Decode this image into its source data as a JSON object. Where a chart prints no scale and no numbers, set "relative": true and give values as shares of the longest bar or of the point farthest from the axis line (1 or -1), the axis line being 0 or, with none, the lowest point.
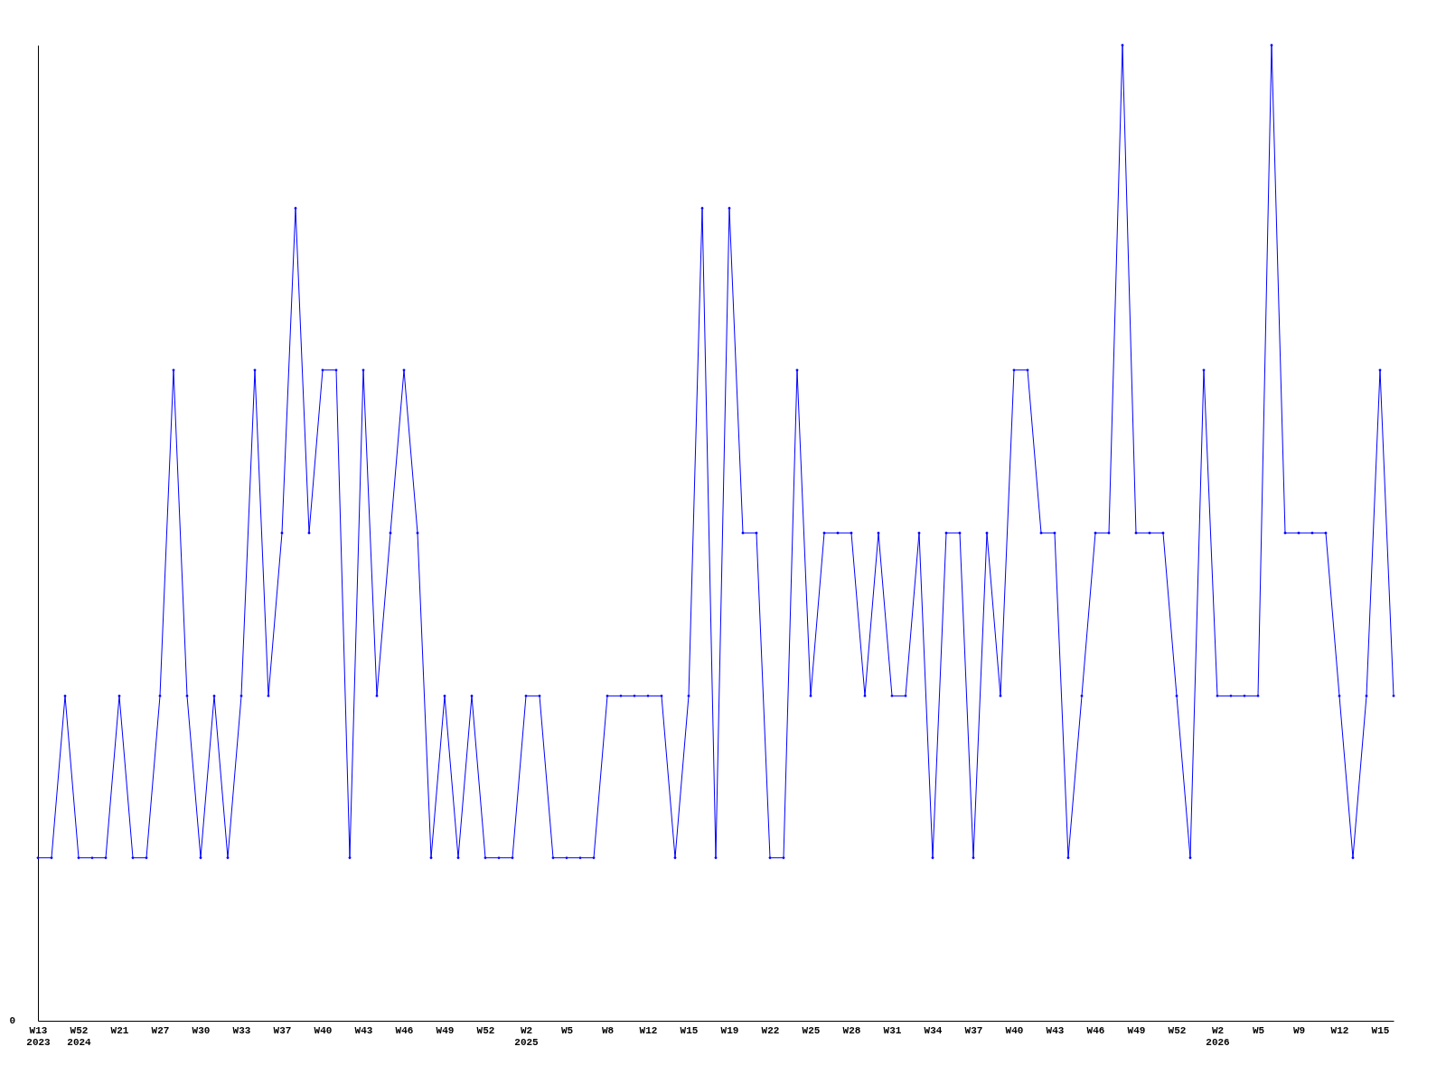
{
  "chart_data": {
    "type": "line",
    "relative": true,
    "marker": "diamond",
    "grid": false,
    "categories": [
      "W13\n2023",
      null,
      null,
      "W52\n2024",
      null,
      null,
      "W21",
      null,
      null,
      "W27",
      null,
      null,
      "W30",
      null,
      null,
      "W33",
      null,
      null,
      "W37",
      null,
      null,
      "W40",
      null,
      null,
      "W43",
      null,
      null,
      "W46",
      null,
      null,
      "W49",
      null,
      null,
      "W52",
      null,
      null,
      "W2\n2025",
      null,
      null,
      "W5",
      null,
      null,
      "W8",
      null,
      null,
      "W12",
      null,
      null,
      "W15",
      null,
      null,
      "W19",
      null,
      null,
      "W22",
      null,
      null,
      "W25",
      null,
      null,
      "W28",
      null,
      null,
      "W31",
      null,
      null,
      "W34",
      null,
      null,
      "W37",
      null,
      null,
      "W40",
      null,
      null,
      "W43",
      null,
      null,
      "W46",
      null,
      null,
      "W49",
      null,
      null,
      "W52",
      null,
      null,
      "W2\n2026",
      null,
      null,
      "W5",
      null,
      null,
      "W9",
      null,
      null,
      "W12",
      null,
      null,
      "W15",
      null
    ],
    "series": [
      {
        "color": "#0000ff",
        "values": [
          0.167,
          0.167,
          0.333,
          0.167,
          0.167,
          0.167,
          0.333,
          0.167,
          0.167,
          0.333,
          0.667,
          0.333,
          0.167,
          0.333,
          0.167,
          0.333,
          0.667,
          0.333,
          0.5,
          0.833,
          0.5,
          0.667,
          0.667,
          0.167,
          0.667,
          0.333,
          0.5,
          0.667,
          0.5,
          0.167,
          0.333,
          0.167,
          0.333,
          0.167,
          0.167,
          0.167,
          0.333,
          0.333,
          0.167,
          0.167,
          0.167,
          0.167,
          0.333,
          0.333,
          0.333,
          0.333,
          0.333,
          0.167,
          0.333,
          0.833,
          0.167,
          0.833,
          0.5,
          0.5,
          0.167,
          0.167,
          0.667,
          0.333,
          0.5,
          0.5,
          0.5,
          0.333,
          0.5,
          0.333,
          0.333,
          0.5,
          0.167,
          0.5,
          0.5,
          0.167,
          0.5,
          0.333,
          0.667,
          0.667,
          0.5,
          0.5,
          0.167,
          0.333,
          0.5,
          0.5,
          1,
          0.5,
          0.5,
          0.5,
          0.333,
          0.167,
          0.667,
          0.333,
          0.333,
          0.333,
          0.333,
          1,
          0.5,
          0.5,
          0.5,
          0.5,
          0.333,
          0.167,
          0.333,
          0.667,
          0.333
        ]
      }
    ],
    "annotations": [
      "0"
    ]
  }
}
